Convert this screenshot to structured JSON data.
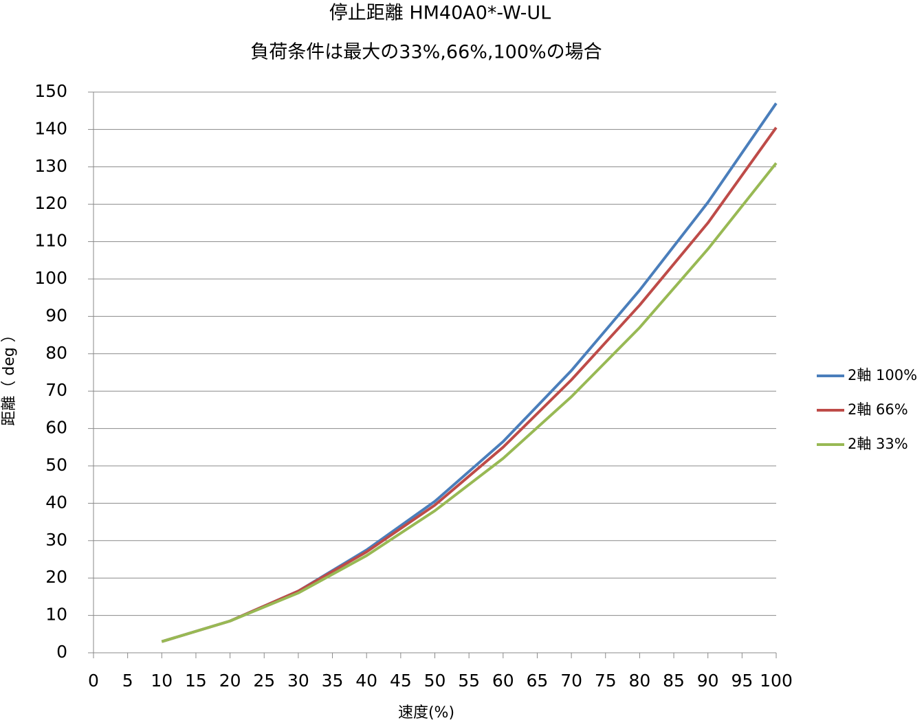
{
  "chart_data": {
    "type": "line",
    "title": "停止距離 HM40A0*-W-UL",
    "subtitle": "負荷条件は最大の33%,66%,100%の場合",
    "x_label": "速度(%)",
    "y_label": "距離（ deg ）",
    "x": [
      10,
      20,
      30,
      40,
      50,
      60,
      70,
      80,
      90,
      100
    ],
    "series": [
      {
        "name": "2軸 100%",
        "color": "#4a7ebb",
        "values": [
          3,
          8.5,
          16.5,
          27.5,
          40.5,
          56.5,
          75.5,
          97,
          120.5,
          147
        ]
      },
      {
        "name": "2軸 66%",
        "color": "#be4b48",
        "values": [
          3,
          8.5,
          16.5,
          27,
          39.5,
          55,
          73,
          93,
          115,
          140.5
        ]
      },
      {
        "name": "2軸 33%",
        "color": "#98b954",
        "values": [
          3,
          8.5,
          16,
          26,
          38,
          52,
          68.5,
          87,
          108,
          131
        ]
      }
    ],
    "xlim": [
      0,
      100
    ],
    "xticks": [
      0,
      5,
      10,
      15,
      20,
      25,
      30,
      35,
      40,
      45,
      50,
      55,
      60,
      65,
      70,
      75,
      80,
      85,
      90,
      95,
      100
    ],
    "ylim": [
      0,
      150
    ],
    "yticks": [
      0,
      10,
      20,
      30,
      40,
      50,
      60,
      70,
      80,
      90,
      100,
      110,
      120,
      130,
      140,
      150
    ],
    "grid": true,
    "legend": "right"
  }
}
